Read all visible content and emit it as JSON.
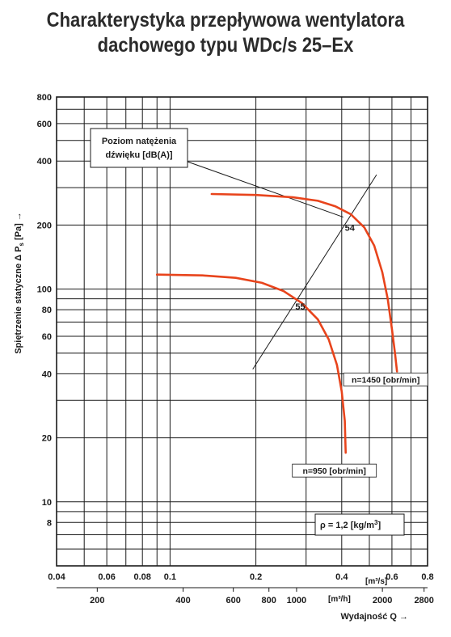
{
  "chart_data": {
    "type": "line",
    "title_line1": "Charakterystyka przepływowa wentylatora",
    "title_line2": "dachowego typu WDc/s 25–Ex",
    "ylabel_prefix": "Spiętrzenie statyczne Δ P",
    "ylabel_sub": "s",
    "ylabel_suffix": " [Pa] →",
    "xlabel": "Wydajność Q →",
    "x_unit_top": "[m³/s]",
    "x_unit_bottom": "[m³/h]",
    "x_scale": "log",
    "y_scale": "log",
    "xlim": [
      0.04,
      0.8
    ],
    "ylim": [
      5,
      800
    ],
    "grid": true,
    "x_ticks": [
      {
        "v": 0.04,
        "label": "0.04"
      },
      {
        "v": 0.06,
        "label": "0.06"
      },
      {
        "v": 0.08,
        "label": "0.08"
      },
      {
        "v": 0.1,
        "label": "0.1"
      },
      {
        "v": 0.2,
        "label": "0.2"
      },
      {
        "v": 0.4,
        "label": "0.4"
      },
      {
        "v": 0.6,
        "label": "0.6"
      },
      {
        "v": 0.8,
        "label": "0.8"
      }
    ],
    "x_ticks_bottom": [
      {
        "v": 200,
        "label": "200"
      },
      {
        "v": 400,
        "label": "400"
      },
      {
        "v": 600,
        "label": "600"
      },
      {
        "v": 800,
        "label": "800"
      },
      {
        "v": 1000,
        "label": "1000"
      },
      {
        "v": 2000,
        "label": "2000"
      },
      {
        "v": 2800,
        "label": "2800"
      }
    ],
    "y_ticks": [
      {
        "v": 800,
        "label": "800"
      },
      {
        "v": 600,
        "label": "600"
      },
      {
        "v": 400,
        "label": "400"
      },
      {
        "v": 200,
        "label": "200"
      },
      {
        "v": 100,
        "label": "100"
      },
      {
        "v": 80,
        "label": "80"
      },
      {
        "v": 60,
        "label": "60"
      },
      {
        "v": 40,
        "label": "40"
      },
      {
        "v": 20,
        "label": "20"
      },
      {
        "v": 10,
        "label": "10"
      },
      {
        "v": 8,
        "label": "8"
      }
    ],
    "x_grid": [
      0.04,
      0.05,
      0.06,
      0.07,
      0.08,
      0.09,
      0.1,
      0.2,
      0.3,
      0.4,
      0.5,
      0.6,
      0.7,
      0.8
    ],
    "y_grid": [
      800,
      700,
      600,
      500,
      400,
      300,
      200,
      100,
      90,
      80,
      70,
      60,
      50,
      40,
      30,
      20,
      10,
      9,
      8,
      7,
      6
    ],
    "series": [
      {
        "name": "n=1450 [obr/min]",
        "color": "#e8441c",
        "points": [
          [
            0.14,
            280
          ],
          [
            0.2,
            277
          ],
          [
            0.27,
            270
          ],
          [
            0.33,
            260
          ],
          [
            0.38,
            245
          ],
          [
            0.43,
            225
          ],
          [
            0.48,
            195
          ],
          [
            0.52,
            160
          ],
          [
            0.555,
            120
          ],
          [
            0.58,
            90
          ],
          [
            0.6,
            65
          ],
          [
            0.615,
            50
          ],
          [
            0.625,
            41
          ]
        ]
      },
      {
        "name": "n=950 [obr/min]",
        "color": "#e8441c",
        "points": [
          [
            0.09,
            117
          ],
          [
            0.13,
            116
          ],
          [
            0.17,
            113
          ],
          [
            0.21,
            107
          ],
          [
            0.25,
            98
          ],
          [
            0.29,
            86
          ],
          [
            0.33,
            72
          ],
          [
            0.36,
            58
          ],
          [
            0.385,
            44
          ],
          [
            0.4,
            33
          ],
          [
            0.41,
            24
          ],
          [
            0.413,
            17
          ]
        ]
      }
    ],
    "noise_line": {
      "from": [
        0.195,
        42
      ],
      "to": [
        0.53,
        345
      ]
    },
    "noise_values": [
      {
        "label": "54",
        "x": 0.41,
        "y": 188
      },
      {
        "label": "55",
        "x": 0.275,
        "y": 80
      }
    ],
    "noise_label_line1": "Poziom natężenia",
    "noise_label_line2": "dźwięku [dB(A)]",
    "density_prefix": "ρ = 1,2 [kg/m",
    "density_sup": "3",
    "density_suffix": "]"
  }
}
